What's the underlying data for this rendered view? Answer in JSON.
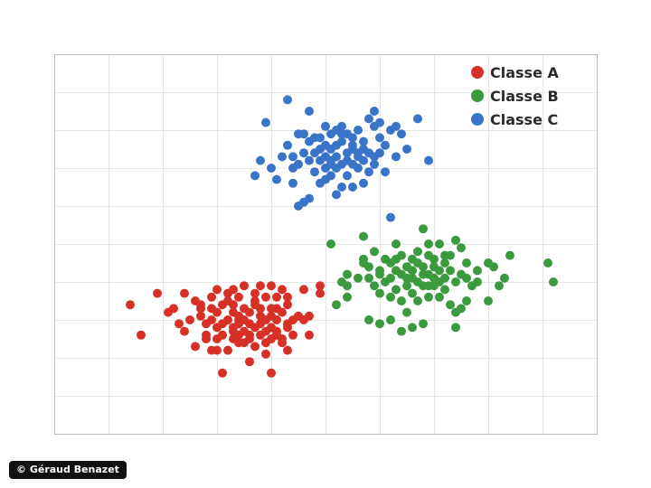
{
  "chart_data": {
    "type": "scatter",
    "title": "",
    "xlabel": "",
    "ylabel": "",
    "xlim": [
      0,
      10
    ],
    "ylim": [
      0,
      10
    ],
    "grid": true,
    "legend_position": "top-right",
    "series": [
      {
        "name": "Classe A",
        "color": "#d73027",
        "points": [
          [
            1.4,
            3.4
          ],
          [
            1.6,
            2.6
          ],
          [
            1.9,
            3.7
          ],
          [
            2.1,
            3.2
          ],
          [
            2.2,
            3.3
          ],
          [
            2.3,
            2.9
          ],
          [
            2.4,
            2.7
          ],
          [
            2.5,
            3.0
          ],
          [
            2.6,
            2.3
          ],
          [
            2.6,
            3.5
          ],
          [
            2.7,
            3.3
          ],
          [
            2.7,
            3.1
          ],
          [
            2.8,
            2.6
          ],
          [
            2.8,
            2.9
          ],
          [
            2.9,
            3.6
          ],
          [
            2.9,
            3.3
          ],
          [
            2.9,
            2.2
          ],
          [
            3.0,
            3.2
          ],
          [
            3.0,
            2.5
          ],
          [
            3.0,
            3.8
          ],
          [
            3.0,
            2.8
          ],
          [
            3.1,
            3.4
          ],
          [
            3.1,
            2.9
          ],
          [
            3.1,
            1.6
          ],
          [
            3.2,
            2.2
          ],
          [
            3.2,
            3.0
          ],
          [
            3.2,
            3.5
          ],
          [
            3.3,
            3.8
          ],
          [
            3.3,
            2.7
          ],
          [
            3.3,
            3.2
          ],
          [
            3.3,
            2.5
          ],
          [
            3.4,
            3.0
          ],
          [
            3.4,
            3.6
          ],
          [
            3.4,
            2.9
          ],
          [
            3.4,
            3.1
          ],
          [
            3.5,
            2.7
          ],
          [
            3.5,
            3.3
          ],
          [
            3.5,
            3.9
          ],
          [
            3.5,
            3.0
          ],
          [
            3.6,
            2.6
          ],
          [
            3.6,
            3.2
          ],
          [
            3.6,
            2.9
          ],
          [
            3.7,
            3.4
          ],
          [
            3.7,
            2.3
          ],
          [
            3.7,
            2.8
          ],
          [
            3.7,
            3.7
          ],
          [
            3.8,
            3.1
          ],
          [
            3.8,
            2.6
          ],
          [
            3.8,
            3.3
          ],
          [
            3.8,
            2.9
          ],
          [
            3.9,
            3.0
          ],
          [
            3.9,
            2.4
          ],
          [
            3.9,
            3.6
          ],
          [
            3.9,
            2.7
          ],
          [
            4.0,
            2.8
          ],
          [
            4.0,
            3.1
          ],
          [
            4.0,
            1.6
          ],
          [
            4.0,
            3.9
          ],
          [
            4.0,
            2.5
          ],
          [
            4.1,
            3.3
          ],
          [
            4.1,
            3.0
          ],
          [
            4.1,
            2.7
          ],
          [
            4.2,
            3.8
          ],
          [
            4.2,
            3.2
          ],
          [
            4.2,
            2.5
          ],
          [
            4.3,
            2.9
          ],
          [
            4.3,
            3.4
          ],
          [
            4.3,
            2.2
          ],
          [
            4.3,
            2.8
          ],
          [
            4.4,
            3.0
          ],
          [
            4.4,
            2.6
          ],
          [
            4.5,
            3.1
          ],
          [
            4.6,
            3.8
          ],
          [
            4.6,
            3.0
          ],
          [
            4.7,
            2.6
          ],
          [
            4.7,
            3.1
          ],
          [
            4.9,
            3.7
          ],
          [
            4.9,
            3.9
          ],
          [
            4.3,
            3.6
          ],
          [
            3.4,
            2.6
          ],
          [
            3.6,
            1.9
          ],
          [
            3.9,
            2.1
          ],
          [
            2.4,
            3.7
          ],
          [
            4.1,
            3.6
          ],
          [
            3.2,
            3.7
          ],
          [
            2.7,
            3.4
          ],
          [
            3.0,
            2.2
          ],
          [
            3.5,
            2.4
          ],
          [
            3.8,
            3.9
          ],
          [
            4.2,
            2.4
          ],
          [
            3.3,
            3.4
          ],
          [
            2.9,
            3.0
          ],
          [
            3.1,
            2.6
          ],
          [
            3.6,
            2.5
          ],
          [
            4.0,
            3.3
          ],
          [
            3.7,
            3.5
          ],
          [
            3.4,
            2.4
          ],
          [
            4.1,
            2.6
          ],
          [
            3.3,
            2.8
          ],
          [
            2.8,
            2.5
          ]
        ]
      },
      {
        "name": "Classe B",
        "color": "#3b9a3d",
        "points": [
          [
            5.1,
            5.0
          ],
          [
            5.2,
            3.4
          ],
          [
            5.3,
            4.0
          ],
          [
            5.4,
            4.2
          ],
          [
            5.4,
            3.6
          ],
          [
            5.4,
            3.9
          ],
          [
            5.6,
            4.1
          ],
          [
            5.7,
            4.6
          ],
          [
            5.7,
            5.2
          ],
          [
            5.8,
            4.1
          ],
          [
            5.8,
            3.0
          ],
          [
            5.8,
            4.4
          ],
          [
            5.9,
            3.9
          ],
          [
            5.9,
            4.8
          ],
          [
            6.0,
            4.3
          ],
          [
            6.0,
            2.9
          ],
          [
            6.0,
            4.2
          ],
          [
            6.1,
            4.0
          ],
          [
            6.1,
            4.6
          ],
          [
            6.2,
            4.1
          ],
          [
            6.2,
            4.5
          ],
          [
            6.2,
            3.6
          ],
          [
            6.3,
            4.6
          ],
          [
            6.3,
            4.3
          ],
          [
            6.3,
            5.0
          ],
          [
            6.4,
            3.5
          ],
          [
            6.4,
            2.7
          ],
          [
            6.4,
            4.2
          ],
          [
            6.4,
            4.7
          ],
          [
            6.5,
            3.9
          ],
          [
            6.5,
            4.4
          ],
          [
            6.5,
            3.2
          ],
          [
            6.5,
            4.1
          ],
          [
            6.6,
            4.6
          ],
          [
            6.6,
            3.7
          ],
          [
            6.6,
            2.8
          ],
          [
            6.6,
            4.3
          ],
          [
            6.7,
            4.0
          ],
          [
            6.7,
            4.8
          ],
          [
            6.7,
            3.5
          ],
          [
            6.7,
            4.5
          ],
          [
            6.8,
            4.2
          ],
          [
            6.8,
            2.9
          ],
          [
            6.8,
            3.9
          ],
          [
            6.8,
            4.4
          ],
          [
            6.9,
            4.7
          ],
          [
            6.9,
            5.0
          ],
          [
            6.9,
            4.2
          ],
          [
            6.9,
            3.6
          ],
          [
            7.0,
            4.4
          ],
          [
            7.0,
            3.9
          ],
          [
            7.0,
            4.6
          ],
          [
            7.0,
            4.1
          ],
          [
            7.1,
            5.0
          ],
          [
            7.1,
            4.3
          ],
          [
            7.1,
            4.0
          ],
          [
            7.2,
            4.5
          ],
          [
            7.2,
            3.8
          ],
          [
            7.2,
            4.1
          ],
          [
            7.3,
            4.7
          ],
          [
            7.3,
            3.4
          ],
          [
            7.3,
            4.3
          ],
          [
            7.4,
            4.0
          ],
          [
            7.4,
            2.8
          ],
          [
            7.5,
            4.2
          ],
          [
            7.5,
            4.9
          ],
          [
            7.6,
            4.1
          ],
          [
            7.6,
            3.5
          ],
          [
            7.6,
            4.5
          ],
          [
            7.8,
            4.0
          ],
          [
            7.8,
            4.3
          ],
          [
            8.0,
            3.5
          ],
          [
            8.0,
            4.5
          ],
          [
            8.1,
            4.4
          ],
          [
            8.2,
            3.9
          ],
          [
            8.4,
            4.7
          ],
          [
            9.1,
            4.5
          ],
          [
            9.2,
            4.0
          ],
          [
            7.1,
            3.6
          ],
          [
            6.3,
            3.8
          ],
          [
            7.4,
            3.2
          ],
          [
            6.9,
            3.9
          ],
          [
            6.2,
            3.0
          ],
          [
            7.2,
            4.7
          ],
          [
            6.6,
            4.1
          ],
          [
            6.0,
            3.7
          ],
          [
            6.8,
            5.4
          ],
          [
            7.4,
            5.1
          ],
          [
            7.7,
            3.9
          ],
          [
            8.3,
            4.1
          ],
          [
            7.5,
            3.3
          ],
          [
            5.7,
            4.5
          ]
        ]
      },
      {
        "name": "Classe C",
        "color": "#3a74c8",
        "points": [
          [
            3.7,
            6.8
          ],
          [
            3.8,
            7.2
          ],
          [
            3.9,
            8.2
          ],
          [
            4.0,
            7.0
          ],
          [
            4.1,
            6.7
          ],
          [
            4.2,
            7.3
          ],
          [
            4.3,
            7.6
          ],
          [
            4.3,
            8.8
          ],
          [
            4.4,
            6.6
          ],
          [
            4.4,
            7.3
          ],
          [
            4.5,
            7.9
          ],
          [
            4.5,
            7.1
          ],
          [
            4.5,
            6.0
          ],
          [
            4.6,
            7.4
          ],
          [
            4.6,
            7.9
          ],
          [
            4.7,
            6.2
          ],
          [
            4.7,
            7.2
          ],
          [
            4.7,
            7.7
          ],
          [
            4.8,
            7.4
          ],
          [
            4.8,
            7.8
          ],
          [
            4.8,
            6.9
          ],
          [
            4.9,
            7.2
          ],
          [
            4.9,
            7.5
          ],
          [
            4.9,
            7.8
          ],
          [
            5.0,
            7.3
          ],
          [
            5.0,
            6.7
          ],
          [
            5.0,
            8.1
          ],
          [
            5.0,
            7.0
          ],
          [
            5.1,
            7.5
          ],
          [
            5.1,
            6.8
          ],
          [
            5.1,
            7.9
          ],
          [
            5.1,
            7.2
          ],
          [
            5.2,
            7.6
          ],
          [
            5.2,
            6.3
          ],
          [
            5.2,
            8.0
          ],
          [
            5.2,
            7.3
          ],
          [
            5.3,
            7.1
          ],
          [
            5.3,
            7.7
          ],
          [
            5.3,
            6.5
          ],
          [
            5.3,
            8.1
          ],
          [
            5.4,
            7.4
          ],
          [
            5.4,
            6.8
          ],
          [
            5.4,
            7.9
          ],
          [
            5.4,
            7.2
          ],
          [
            5.5,
            7.6
          ],
          [
            5.5,
            7.1
          ],
          [
            5.5,
            6.5
          ],
          [
            5.5,
            7.8
          ],
          [
            5.6,
            7.4
          ],
          [
            5.6,
            7.0
          ],
          [
            5.6,
            8.0
          ],
          [
            5.7,
            7.2
          ],
          [
            5.7,
            6.6
          ],
          [
            5.7,
            7.7
          ],
          [
            5.8,
            8.3
          ],
          [
            5.8,
            7.4
          ],
          [
            5.8,
            6.9
          ],
          [
            5.9,
            8.5
          ],
          [
            5.9,
            7.3
          ],
          [
            5.9,
            7.1
          ],
          [
            6.0,
            7.4
          ],
          [
            6.0,
            8.2
          ],
          [
            6.0,
            7.8
          ],
          [
            6.1,
            6.9
          ],
          [
            6.1,
            7.6
          ],
          [
            6.2,
            8.0
          ],
          [
            6.2,
            5.7
          ],
          [
            6.3,
            8.1
          ],
          [
            6.3,
            7.3
          ],
          [
            6.4,
            7.9
          ],
          [
            6.5,
            7.5
          ],
          [
            6.7,
            8.3
          ],
          [
            6.9,
            7.2
          ],
          [
            4.6,
            6.1
          ],
          [
            4.7,
            8.5
          ],
          [
            5.6,
            7.3
          ],
          [
            4.9,
            6.6
          ],
          [
            5.2,
            7.0
          ],
          [
            5.0,
            7.6
          ],
          [
            5.5,
            7.5
          ],
          [
            5.3,
            7.9
          ],
          [
            5.9,
            8.1
          ],
          [
            4.4,
            7.0
          ],
          [
            5.7,
            7.5
          ],
          [
            5.1,
            7.1
          ]
        ]
      }
    ]
  },
  "credit": "© Géraud Benazet"
}
